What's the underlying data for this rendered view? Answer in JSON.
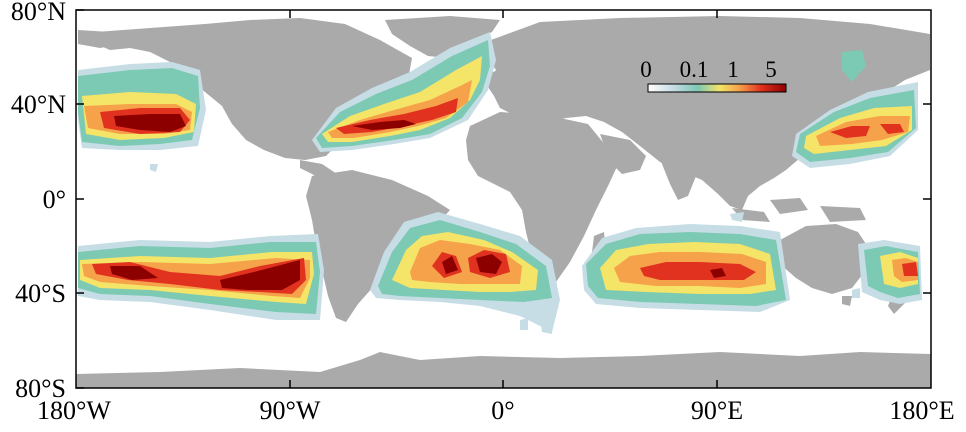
{
  "map": {
    "projection": "equirectangular",
    "land_color": "#aaaaaa",
    "ocean_color": "#ffffff",
    "lat_labels": [
      "80°N",
      "40°N",
      "0°",
      "40°S",
      "80°S"
    ],
    "lon_labels": [
      "180°W",
      "90°W",
      "0°",
      "90°E",
      "180°E"
    ],
    "colorbar": {
      "tick_labels": [
        "0",
        "0.1",
        "1",
        "5"
      ],
      "colors": [
        "#ffffff",
        "#c6dde6",
        "#7cc9b4",
        "#f4e467",
        "#f6a24a",
        "#e0321f",
        "#8c0000"
      ]
    },
    "colormap_levels": [
      {
        "level": 1,
        "color": "#c6dde6"
      },
      {
        "level": 2,
        "color": "#7cc9b4"
      },
      {
        "level": 3,
        "color": "#f4e467"
      },
      {
        "level": 4,
        "color": "#f6a24a"
      },
      {
        "level": 5,
        "color": "#e0321f"
      },
      {
        "level": 6,
        "color": "#8c0000"
      }
    ]
  }
}
